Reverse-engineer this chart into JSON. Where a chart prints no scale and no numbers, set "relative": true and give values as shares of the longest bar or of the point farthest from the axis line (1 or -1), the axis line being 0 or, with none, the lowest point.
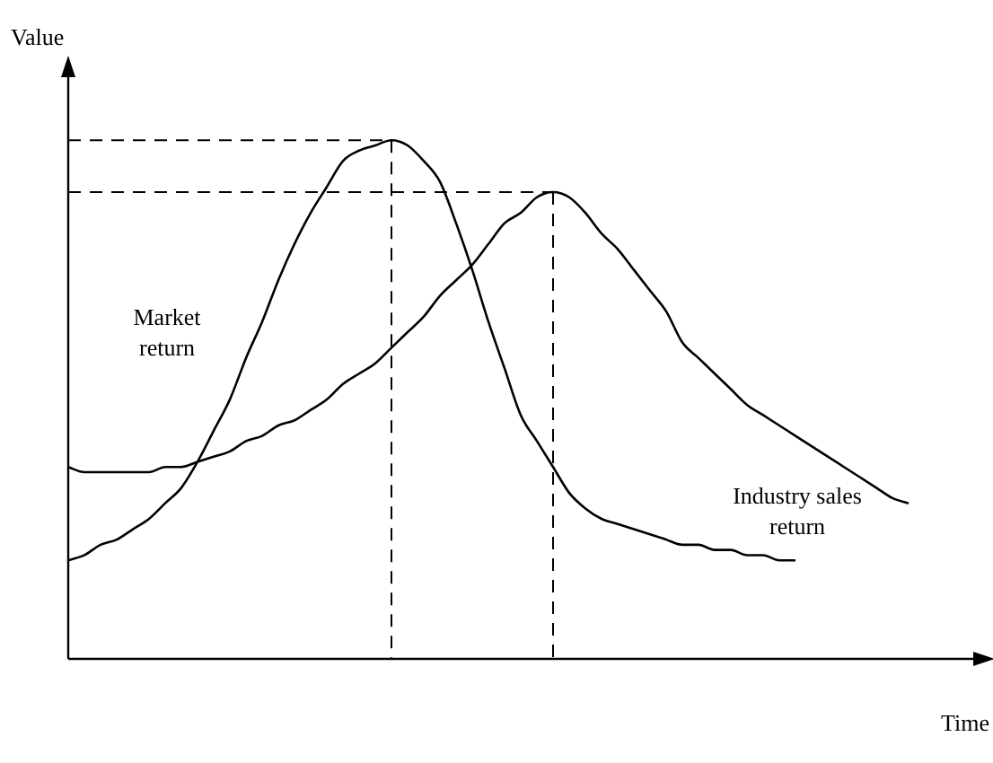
{
  "chart_data": {
    "type": "line",
    "relative": true,
    "xlabel": "Time",
    "ylabel": "Value",
    "legend": false,
    "grid": false,
    "marker": "none",
    "line_style": "solid",
    "categories": [
      null,
      null,
      null,
      null,
      null,
      null,
      null,
      null,
      null,
      null,
      null,
      null,
      null,
      null,
      null,
      null,
      null,
      null,
      null,
      null,
      null,
      null,
      null,
      null,
      null,
      null,
      null,
      null,
      null,
      null,
      null,
      null,
      null,
      null,
      null,
      null,
      null,
      null,
      null,
      null,
      null,
      null,
      null,
      null,
      null,
      null,
      null,
      null,
      null,
      null,
      null,
      null,
      null,
      null,
      null,
      null,
      null
    ],
    "series": [
      {
        "name": "Market return",
        "color": "#000000",
        "values": [
          0.19,
          0.2,
          0.22,
          0.23,
          0.25,
          0.27,
          0.3,
          0.33,
          0.38,
          0.44,
          0.5,
          0.58,
          0.65,
          0.73,
          0.8,
          0.86,
          0.91,
          0.96,
          0.98,
          0.99,
          1,
          0.99,
          0.96,
          0.92,
          0.84,
          0.75,
          0.65,
          0.56,
          0.47,
          0.42,
          0.37,
          0.32,
          0.29,
          0.27,
          0.26,
          0.25,
          0.24,
          0.23,
          0.22,
          0.22,
          0.21,
          0.21,
          0.2,
          0.2,
          0.19,
          0.19,
          null,
          null,
          null,
          null,
          null,
          null,
          null,
          null,
          null,
          null,
          null
        ]
      },
      {
        "name": "Industry sales return",
        "color": "#000000",
        "values": [
          0.37,
          0.36,
          0.36,
          0.36,
          0.36,
          0.36,
          0.37,
          0.37,
          0.38,
          0.39,
          0.4,
          0.42,
          0.43,
          0.45,
          0.46,
          0.48,
          0.5,
          0.53,
          0.55,
          0.57,
          0.6,
          0.63,
          0.66,
          0.7,
          0.73,
          0.76,
          0.8,
          0.84,
          0.86,
          0.89,
          0.9,
          0.89,
          0.86,
          0.82,
          0.79,
          0.75,
          0.71,
          0.67,
          0.61,
          0.58,
          0.55,
          0.52,
          0.49,
          0.47,
          0.45,
          0.43,
          0.41,
          0.39,
          0.37,
          0.35,
          0.33,
          0.31,
          0.3,
          null,
          null,
          null,
          null
        ]
      }
    ],
    "ref_lines": [
      {
        "axis": "y",
        "value": 1,
        "color": "#000000",
        "line_style": "dashed"
      },
      {
        "axis": "y",
        "value": 0.9,
        "color": "#000000",
        "line_style": "dashed"
      }
    ]
  }
}
